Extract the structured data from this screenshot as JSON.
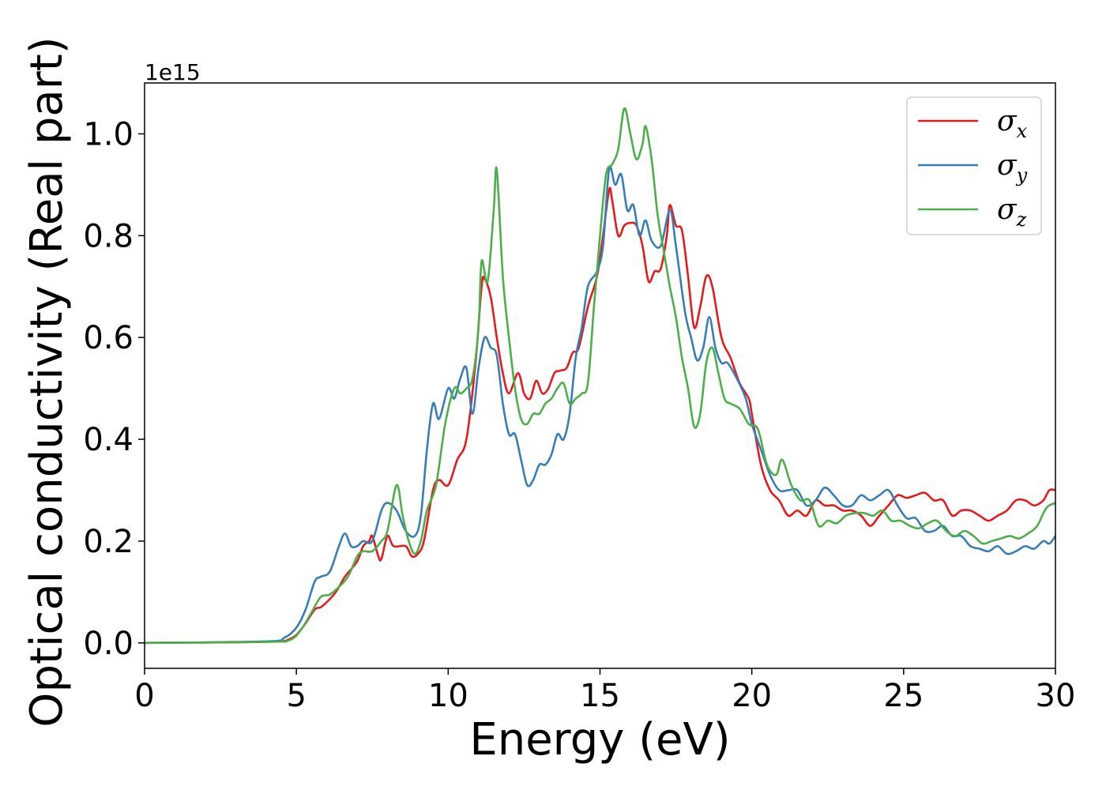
{
  "chart_data": {
    "type": "line",
    "title": "",
    "xlabel": "Energy (eV)",
    "ylabel": "Optical conductivity (Real part)",
    "y_offset_label": "1e15",
    "xlim": [
      0,
      30
    ],
    "ylim": [
      -0.05,
      1.1
    ],
    "x_ticks": [
      0,
      5,
      10,
      15,
      20,
      25,
      30
    ],
    "x_tick_labels": [
      "0",
      "5",
      "10",
      "15",
      "20",
      "25",
      "30"
    ],
    "y_ticks": [
      0.0,
      0.2,
      0.4,
      0.6,
      0.8,
      1.0
    ],
    "y_tick_labels": [
      "0.0",
      "0.2",
      "0.4",
      "0.6",
      "0.8",
      "1.0"
    ],
    "grid": false,
    "legend_position": "top-right",
    "series": [
      {
        "name": "σx",
        "name_base": "σ",
        "name_sub": "x",
        "color": "#e41a1c",
        "points": [
          [
            0,
            0
          ],
          [
            4,
            0.002
          ],
          [
            4.8,
            0.008
          ],
          [
            5.2,
            0.03
          ],
          [
            5.6,
            0.065
          ],
          [
            5.8,
            0.07
          ],
          [
            6,
            0.08
          ],
          [
            6.3,
            0.1
          ],
          [
            6.6,
            0.13
          ],
          [
            7,
            0.16
          ],
          [
            7.2,
            0.19
          ],
          [
            7.4,
            0.2
          ],
          [
            7.5,
            0.21
          ],
          [
            7.7,
            0.17
          ],
          [
            7.8,
            0.165
          ],
          [
            8,
            0.21
          ],
          [
            8.2,
            0.19
          ],
          [
            8.6,
            0.19
          ],
          [
            8.8,
            0.17
          ],
          [
            9,
            0.175
          ],
          [
            9.2,
            0.2
          ],
          [
            9.5,
            0.3
          ],
          [
            9.7,
            0.32
          ],
          [
            10,
            0.31
          ],
          [
            10.3,
            0.36
          ],
          [
            10.6,
            0.4
          ],
          [
            10.9,
            0.55
          ],
          [
            11.1,
            0.7
          ],
          [
            11.2,
            0.715
          ],
          [
            11.4,
            0.68
          ],
          [
            11.6,
            0.6
          ],
          [
            11.8,
            0.53
          ],
          [
            12,
            0.49
          ],
          [
            12.3,
            0.53
          ],
          [
            12.5,
            0.49
          ],
          [
            12.7,
            0.48
          ],
          [
            12.9,
            0.515
          ],
          [
            13.1,
            0.49
          ],
          [
            13.3,
            0.5
          ],
          [
            13.5,
            0.53
          ],
          [
            13.7,
            0.535
          ],
          [
            13.9,
            0.54
          ],
          [
            14.1,
            0.57
          ],
          [
            14.3,
            0.58
          ],
          [
            14.6,
            0.66
          ],
          [
            14.9,
            0.72
          ],
          [
            15.1,
            0.8
          ],
          [
            15.3,
            0.89
          ],
          [
            15.4,
            0.87
          ],
          [
            15.6,
            0.8
          ],
          [
            15.8,
            0.82
          ],
          [
            16,
            0.825
          ],
          [
            16.2,
            0.82
          ],
          [
            16.4,
            0.78
          ],
          [
            16.6,
            0.71
          ],
          [
            16.8,
            0.73
          ],
          [
            17,
            0.735
          ],
          [
            17.2,
            0.8
          ],
          [
            17.3,
            0.86
          ],
          [
            17.5,
            0.82
          ],
          [
            17.7,
            0.81
          ],
          [
            17.9,
            0.72
          ],
          [
            18.1,
            0.62
          ],
          [
            18.3,
            0.66
          ],
          [
            18.5,
            0.72
          ],
          [
            18.7,
            0.7
          ],
          [
            19,
            0.6
          ],
          [
            19.3,
            0.56
          ],
          [
            19.6,
            0.51
          ],
          [
            19.9,
            0.48
          ],
          [
            20,
            0.45
          ],
          [
            20.3,
            0.35
          ],
          [
            20.6,
            0.3
          ],
          [
            20.9,
            0.28
          ],
          [
            21.2,
            0.25
          ],
          [
            21.5,
            0.26
          ],
          [
            21.8,
            0.25
          ],
          [
            22.1,
            0.28
          ],
          [
            22.4,
            0.27
          ],
          [
            22.7,
            0.27
          ],
          [
            23,
            0.26
          ],
          [
            23.3,
            0.26
          ],
          [
            23.6,
            0.25
          ],
          [
            23.9,
            0.23
          ],
          [
            24.2,
            0.25
          ],
          [
            24.5,
            0.27
          ],
          [
            24.8,
            0.29
          ],
          [
            25.1,
            0.285
          ],
          [
            25.4,
            0.29
          ],
          [
            25.7,
            0.295
          ],
          [
            26,
            0.28
          ],
          [
            26.3,
            0.28
          ],
          [
            26.6,
            0.25
          ],
          [
            26.9,
            0.26
          ],
          [
            27.2,
            0.26
          ],
          [
            27.5,
            0.25
          ],
          [
            27.8,
            0.24
          ],
          [
            28.1,
            0.25
          ],
          [
            28.4,
            0.26
          ],
          [
            28.7,
            0.28
          ],
          [
            29,
            0.28
          ],
          [
            29.3,
            0.27
          ],
          [
            29.6,
            0.28
          ],
          [
            29.8,
            0.3
          ],
          [
            30,
            0.3
          ]
        ]
      },
      {
        "name": "σy",
        "name_base": "σ",
        "name_sub": "y",
        "color": "#377eb8",
        "points": [
          [
            0,
            0
          ],
          [
            4,
            0.003
          ],
          [
            4.6,
            0.01
          ],
          [
            5,
            0.03
          ],
          [
            5.3,
            0.065
          ],
          [
            5.6,
            0.12
          ],
          [
            5.8,
            0.13
          ],
          [
            6.1,
            0.14
          ],
          [
            6.4,
            0.19
          ],
          [
            6.6,
            0.215
          ],
          [
            6.8,
            0.19
          ],
          [
            7,
            0.19
          ],
          [
            7.2,
            0.2
          ],
          [
            7.5,
            0.2
          ],
          [
            7.8,
            0.26
          ],
          [
            8,
            0.275
          ],
          [
            8.3,
            0.26
          ],
          [
            8.6,
            0.22
          ],
          [
            8.9,
            0.21
          ],
          [
            9.1,
            0.25
          ],
          [
            9.3,
            0.38
          ],
          [
            9.5,
            0.47
          ],
          [
            9.7,
            0.44
          ],
          [
            10,
            0.5
          ],
          [
            10.2,
            0.48
          ],
          [
            10.4,
            0.52
          ],
          [
            10.6,
            0.54
          ],
          [
            10.8,
            0.45
          ],
          [
            11,
            0.54
          ],
          [
            11.2,
            0.6
          ],
          [
            11.4,
            0.58
          ],
          [
            11.6,
            0.565
          ],
          [
            11.8,
            0.47
          ],
          [
            12,
            0.41
          ],
          [
            12.2,
            0.41
          ],
          [
            12.4,
            0.36
          ],
          [
            12.6,
            0.31
          ],
          [
            12.8,
            0.32
          ],
          [
            13,
            0.35
          ],
          [
            13.2,
            0.35
          ],
          [
            13.4,
            0.37
          ],
          [
            13.6,
            0.41
          ],
          [
            13.8,
            0.4
          ],
          [
            14,
            0.45
          ],
          [
            14.2,
            0.56
          ],
          [
            14.4,
            0.62
          ],
          [
            14.6,
            0.7
          ],
          [
            14.9,
            0.73
          ],
          [
            15.1,
            0.78
          ],
          [
            15.3,
            0.93
          ],
          [
            15.5,
            0.9
          ],
          [
            15.7,
            0.92
          ],
          [
            15.9,
            0.85
          ],
          [
            16.1,
            0.86
          ],
          [
            16.3,
            0.8
          ],
          [
            16.5,
            0.83
          ],
          [
            16.7,
            0.79
          ],
          [
            17,
            0.78
          ],
          [
            17.3,
            0.85
          ],
          [
            17.5,
            0.78
          ],
          [
            17.8,
            0.65
          ],
          [
            18,
            0.6
          ],
          [
            18.2,
            0.555
          ],
          [
            18.4,
            0.58
          ],
          [
            18.6,
            0.64
          ],
          [
            18.8,
            0.58
          ],
          [
            19,
            0.55
          ],
          [
            19.2,
            0.55
          ],
          [
            19.5,
            0.52
          ],
          [
            19.8,
            0.48
          ],
          [
            20,
            0.43
          ],
          [
            20.3,
            0.38
          ],
          [
            20.6,
            0.33
          ],
          [
            20.9,
            0.3
          ],
          [
            21.2,
            0.3
          ],
          [
            21.5,
            0.3
          ],
          [
            21.8,
            0.27
          ],
          [
            22.1,
            0.28
          ],
          [
            22.4,
            0.305
          ],
          [
            22.7,
            0.29
          ],
          [
            23,
            0.27
          ],
          [
            23.3,
            0.27
          ],
          [
            23.6,
            0.29
          ],
          [
            23.9,
            0.28
          ],
          [
            24.2,
            0.29
          ],
          [
            24.5,
            0.3
          ],
          [
            24.8,
            0.27
          ],
          [
            25.1,
            0.245
          ],
          [
            25.4,
            0.245
          ],
          [
            25.7,
            0.22
          ],
          [
            26,
            0.22
          ],
          [
            26.3,
            0.23
          ],
          [
            26.6,
            0.21
          ],
          [
            26.9,
            0.21
          ],
          [
            27.2,
            0.19
          ],
          [
            27.5,
            0.185
          ],
          [
            27.8,
            0.18
          ],
          [
            28.1,
            0.19
          ],
          [
            28.4,
            0.175
          ],
          [
            28.7,
            0.18
          ],
          [
            29,
            0.19
          ],
          [
            29.3,
            0.185
          ],
          [
            29.6,
            0.2
          ],
          [
            29.8,
            0.195
          ],
          [
            30,
            0.21
          ]
        ]
      },
      {
        "name": "σz",
        "name_base": "σ",
        "name_sub": "z",
        "color": "#4daf4a",
        "points": [
          [
            0,
            0
          ],
          [
            4,
            0.002
          ],
          [
            4.8,
            0.006
          ],
          [
            5.2,
            0.03
          ],
          [
            5.5,
            0.06
          ],
          [
            5.8,
            0.09
          ],
          [
            6.1,
            0.095
          ],
          [
            6.4,
            0.11
          ],
          [
            6.7,
            0.13
          ],
          [
            7,
            0.17
          ],
          [
            7.2,
            0.18
          ],
          [
            7.5,
            0.18
          ],
          [
            7.8,
            0.2
          ],
          [
            8,
            0.22
          ],
          [
            8.3,
            0.31
          ],
          [
            8.5,
            0.25
          ],
          [
            8.7,
            0.2
          ],
          [
            8.9,
            0.175
          ],
          [
            9.1,
            0.2
          ],
          [
            9.3,
            0.26
          ],
          [
            9.6,
            0.31
          ],
          [
            9.9,
            0.43
          ],
          [
            10.2,
            0.5
          ],
          [
            10.4,
            0.49
          ],
          [
            10.6,
            0.5
          ],
          [
            10.8,
            0.52
          ],
          [
            11,
            0.62
          ],
          [
            11.1,
            0.75
          ],
          [
            11.3,
            0.71
          ],
          [
            11.5,
            0.85
          ],
          [
            11.6,
            0.93
          ],
          [
            11.8,
            0.72
          ],
          [
            12,
            0.6
          ],
          [
            12.2,
            0.5
          ],
          [
            12.4,
            0.44
          ],
          [
            12.6,
            0.43
          ],
          [
            12.8,
            0.45
          ],
          [
            13,
            0.45
          ],
          [
            13.2,
            0.47
          ],
          [
            13.4,
            0.48
          ],
          [
            13.6,
            0.5
          ],
          [
            13.8,
            0.51
          ],
          [
            14,
            0.47
          ],
          [
            14.2,
            0.48
          ],
          [
            14.4,
            0.49
          ],
          [
            14.6,
            0.51
          ],
          [
            14.8,
            0.66
          ],
          [
            15,
            0.8
          ],
          [
            15.2,
            0.92
          ],
          [
            15.4,
            0.94
          ],
          [
            15.6,
            0.97
          ],
          [
            15.8,
            1.05
          ],
          [
            16,
            1.0
          ],
          [
            16.2,
            0.95
          ],
          [
            16.4,
            0.98
          ],
          [
            16.5,
            1.015
          ],
          [
            16.7,
            0.95
          ],
          [
            16.9,
            0.84
          ],
          [
            17.1,
            0.77
          ],
          [
            17.3,
            0.7
          ],
          [
            17.5,
            0.64
          ],
          [
            17.7,
            0.56
          ],
          [
            17.9,
            0.5
          ],
          [
            18.1,
            0.425
          ],
          [
            18.3,
            0.45
          ],
          [
            18.5,
            0.55
          ],
          [
            18.7,
            0.58
          ],
          [
            18.9,
            0.53
          ],
          [
            19.1,
            0.48
          ],
          [
            19.3,
            0.47
          ],
          [
            19.6,
            0.46
          ],
          [
            19.9,
            0.43
          ],
          [
            20.2,
            0.42
          ],
          [
            20.5,
            0.35
          ],
          [
            20.8,
            0.33
          ],
          [
            21,
            0.36
          ],
          [
            21.3,
            0.31
          ],
          [
            21.6,
            0.28
          ],
          [
            21.9,
            0.28
          ],
          [
            22.2,
            0.23
          ],
          [
            22.5,
            0.24
          ],
          [
            22.8,
            0.235
          ],
          [
            23.1,
            0.25
          ],
          [
            23.4,
            0.255
          ],
          [
            23.7,
            0.255
          ],
          [
            24,
            0.25
          ],
          [
            24.3,
            0.26
          ],
          [
            24.6,
            0.24
          ],
          [
            24.9,
            0.24
          ],
          [
            25.2,
            0.23
          ],
          [
            25.5,
            0.225
          ],
          [
            25.8,
            0.235
          ],
          [
            26.1,
            0.24
          ],
          [
            26.4,
            0.22
          ],
          [
            26.7,
            0.21
          ],
          [
            27,
            0.22
          ],
          [
            27.3,
            0.21
          ],
          [
            27.6,
            0.195
          ],
          [
            27.9,
            0.2
          ],
          [
            28.2,
            0.205
          ],
          [
            28.5,
            0.21
          ],
          [
            28.8,
            0.205
          ],
          [
            29.1,
            0.215
          ],
          [
            29.4,
            0.23
          ],
          [
            29.7,
            0.265
          ],
          [
            30,
            0.275
          ]
        ]
      }
    ]
  }
}
